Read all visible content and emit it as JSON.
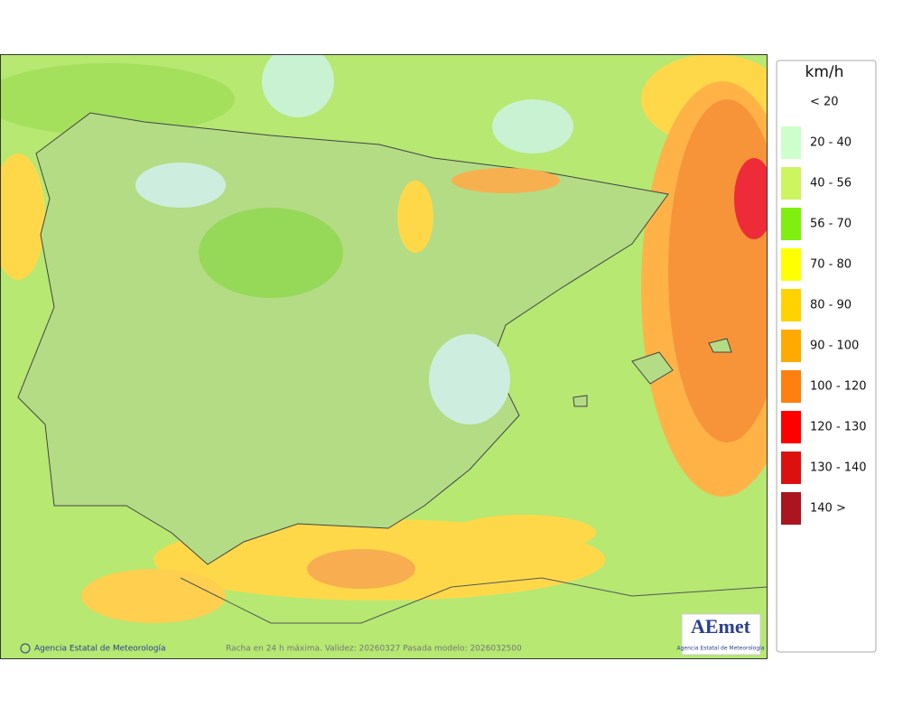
{
  "legend": {
    "title": "km/h",
    "items": [
      {
        "label": "< 20",
        "color": "#ffffff"
      },
      {
        "label": "20 - 40",
        "color": "#ccffcc"
      },
      {
        "label": "40 - 56",
        "color": "#ccf560"
      },
      {
        "label": "56 - 70",
        "color": "#80ee10"
      },
      {
        "label": "70 - 80",
        "color": "#ffff00"
      },
      {
        "label": "80 - 90",
        "color": "#ffd200"
      },
      {
        "label": "90 - 100",
        "color": "#ffaa00"
      },
      {
        "label": "100 - 120",
        "color": "#ff8010"
      },
      {
        "label": "120 - 130",
        "color": "#ff0000"
      },
      {
        "label": "130 - 140",
        "color": "#dd1010"
      },
      {
        "label": "140 >",
        "color": "#aa1520"
      }
    ]
  },
  "footer": {
    "credit": "Agencia Estatal de Meteorología",
    "caption": "Racha en 24 h máxima. Validez: 20260327 Pasada modelo: 2026032500"
  },
  "logo": {
    "name": "AEmet",
    "subtitle": "Agencia Estatal de Meteorología"
  }
}
